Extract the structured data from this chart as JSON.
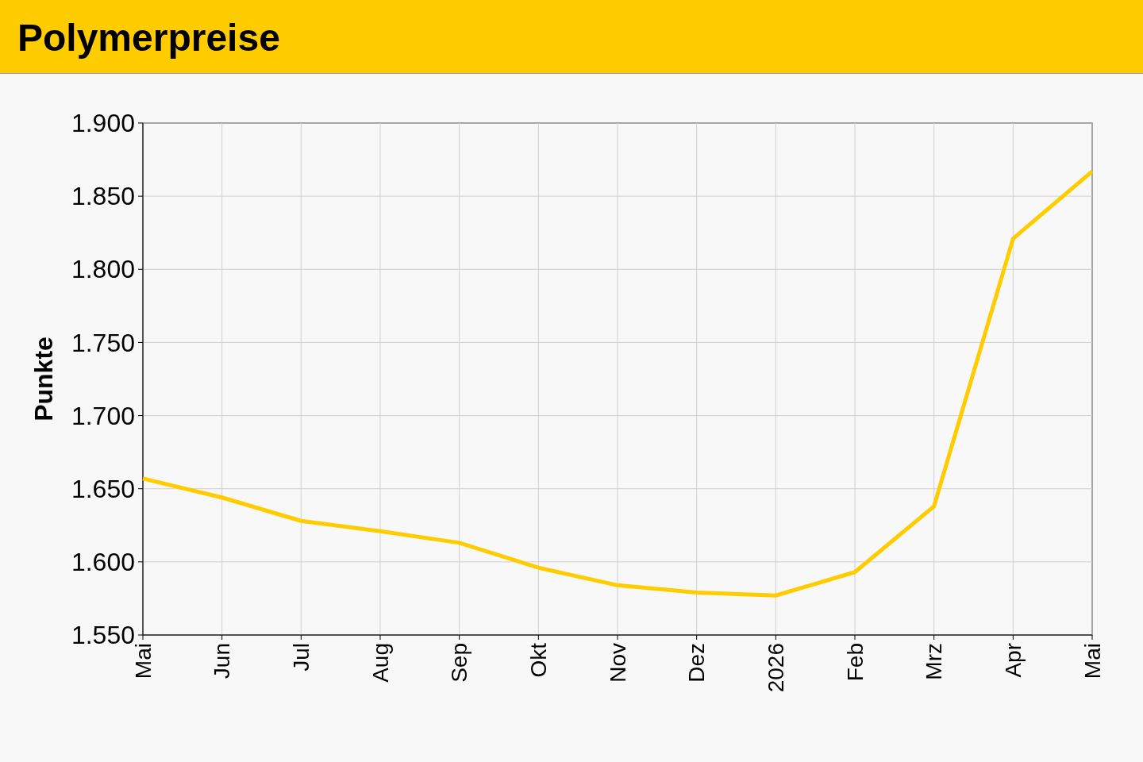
{
  "chart_data": {
    "type": "line",
    "title": "Polymerpreise",
    "ylabel": "Punkte",
    "categories": [
      "Mai",
      "Jun",
      "Jul",
      "Aug",
      "Sep",
      "Okt",
      "Nov",
      "Dez",
      "2026",
      "Feb",
      "Mrz",
      "Apr",
      "Mai"
    ],
    "series": [
      {
        "color": "#ffcc00",
        "values": [
          1657,
          1644,
          1628,
          1621,
          1613,
          1596,
          1584,
          1579,
          1577,
          1593,
          1638,
          1821,
          1867
        ]
      }
    ],
    "ylim": [
      1550,
      1900
    ],
    "yticks": [
      {
        "value": 1550,
        "label": "1.550"
      },
      {
        "value": 1600,
        "label": "1.600"
      },
      {
        "value": 1650,
        "label": "1.650"
      },
      {
        "value": 1700,
        "label": "1.700"
      },
      {
        "value": 1750,
        "label": "1.750"
      },
      {
        "value": 1800,
        "label": "1.800"
      },
      {
        "value": 1850,
        "label": "1.850"
      },
      {
        "value": 1900,
        "label": "1.900"
      }
    ],
    "grid": true,
    "marker": "none",
    "line_style": "solid"
  }
}
